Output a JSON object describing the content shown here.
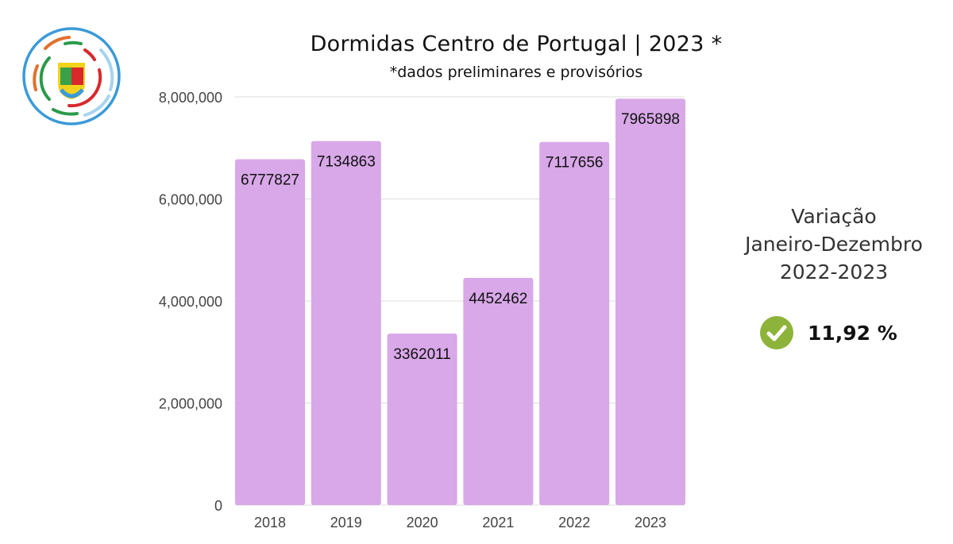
{
  "chart_data": {
    "type": "bar",
    "title": "Dormidas Centro de Portugal | 2023 *",
    "subtitle": "*dados preliminares e provisórios",
    "categories": [
      "2018",
      "2019",
      "2020",
      "2021",
      "2022",
      "2023"
    ],
    "values": [
      6777827,
      7134863,
      3362011,
      4452462,
      7117656,
      7965898
    ],
    "data_labels": [
      "6777827",
      "7134863",
      "3362011",
      "4452462",
      "7117656",
      "7965898"
    ],
    "ylim": [
      0,
      8000000
    ],
    "yticks": [
      0,
      2000000,
      4000000,
      6000000,
      8000000
    ],
    "ytick_labels": [
      "0",
      "2,000,000",
      "4,000,000",
      "6,000,000",
      "8,000,000"
    ],
    "grid": true,
    "bar_color": "#d8a8e8",
    "xlabel": "",
    "ylabel": ""
  },
  "variation": {
    "lines": [
      "Variação",
      "Janeiro-Dezembro",
      "2022-2023"
    ],
    "value": "11,92 %",
    "icon": "check-circle-icon",
    "icon_color": "#8db33a"
  },
  "logo": {
    "icon": "turismo-centro-portugal-logo"
  }
}
